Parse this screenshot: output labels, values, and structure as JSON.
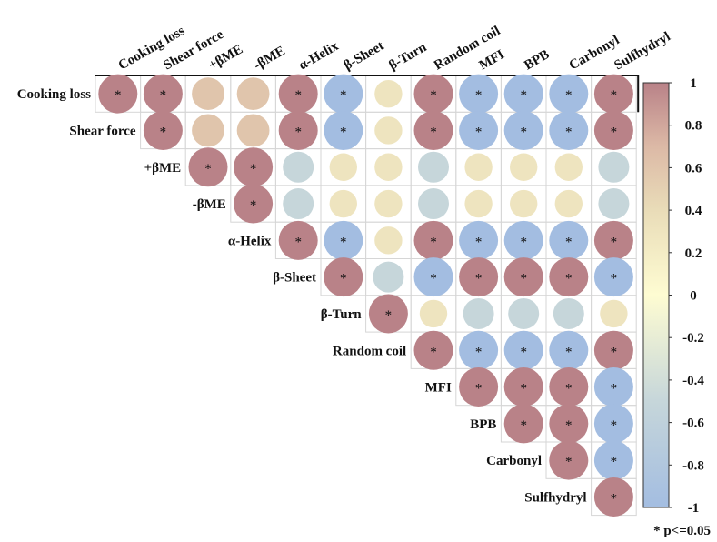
{
  "chart_data": {
    "type": "heatmap",
    "subtype": "upper-triangular correlation matrix",
    "variables": [
      "Cooking loss",
      "Shear force",
      "+βME",
      "-βME",
      "α-Helix",
      "β-Sheet",
      "β-Turn",
      "Random coil",
      "MFI",
      "BPB",
      "Carbonyl",
      "Sulfhydryl"
    ],
    "matrix": [
      [
        1,
        1,
        0.6,
        0.6,
        1,
        -1,
        0.3,
        1,
        -1,
        -1,
        -1,
        1
      ],
      [
        null,
        1,
        0.6,
        0.6,
        1,
        -1,
        0.3,
        1,
        -1,
        -1,
        -1,
        1
      ],
      [
        null,
        null,
        1,
        1,
        -0.5,
        0.3,
        0.3,
        -0.5,
        0.3,
        0.3,
        0.3,
        -0.5
      ],
      [
        null,
        null,
        null,
        1,
        -0.5,
        0.3,
        0.3,
        -0.5,
        0.3,
        0.3,
        0.3,
        -0.5
      ],
      [
        null,
        null,
        null,
        null,
        1,
        -1,
        0.3,
        1,
        -1,
        -1,
        -1,
        1
      ],
      [
        null,
        null,
        null,
        null,
        null,
        1,
        -0.5,
        -1,
        1,
        1,
        1,
        -1
      ],
      [
        null,
        null,
        null,
        null,
        null,
        null,
        1,
        0.3,
        -0.5,
        -0.5,
        -0.5,
        0.3
      ],
      [
        null,
        null,
        null,
        null,
        null,
        null,
        null,
        1,
        -1,
        -1,
        -1,
        1
      ],
      [
        null,
        null,
        null,
        null,
        null,
        null,
        null,
        null,
        1,
        1,
        1,
        -1
      ],
      [
        null,
        null,
        null,
        null,
        null,
        null,
        null,
        null,
        null,
        1,
        1,
        -1
      ],
      [
        null,
        null,
        null,
        null,
        null,
        null,
        null,
        null,
        null,
        null,
        1,
        -1
      ],
      [
        null,
        null,
        null,
        null,
        null,
        null,
        null,
        null,
        null,
        null,
        null,
        1
      ]
    ],
    "significant": [
      [
        true,
        true,
        false,
        false,
        true,
        true,
        false,
        true,
        true,
        true,
        true,
        true
      ],
      [
        null,
        true,
        false,
        false,
        true,
        true,
        false,
        true,
        true,
        true,
        true,
        true
      ],
      [
        null,
        null,
        true,
        true,
        false,
        false,
        false,
        false,
        false,
        false,
        false,
        false
      ],
      [
        null,
        null,
        null,
        true,
        false,
        false,
        false,
        false,
        false,
        false,
        false,
        false
      ],
      [
        null,
        null,
        null,
        null,
        true,
        true,
        false,
        true,
        true,
        true,
        true,
        true
      ],
      [
        null,
        null,
        null,
        null,
        null,
        true,
        false,
        true,
        true,
        true,
        true,
        true
      ],
      [
        null,
        null,
        null,
        null,
        null,
        null,
        true,
        false,
        false,
        false,
        false,
        false
      ],
      [
        null,
        null,
        null,
        null,
        null,
        null,
        null,
        true,
        true,
        true,
        true,
        true
      ],
      [
        null,
        null,
        null,
        null,
        null,
        null,
        null,
        null,
        true,
        true,
        true,
        true
      ],
      [
        null,
        null,
        null,
        null,
        null,
        null,
        null,
        null,
        null,
        true,
        true,
        true
      ],
      [
        null,
        null,
        null,
        null,
        null,
        null,
        null,
        null,
        null,
        null,
        true,
        true
      ],
      [
        null,
        null,
        null,
        null,
        null,
        null,
        null,
        null,
        null,
        null,
        null,
        true
      ]
    ],
    "significance_marker": "*",
    "colorbar": {
      "range": [
        -1,
        1
      ],
      "ticks": [
        1,
        0.8,
        0.6,
        0.4,
        0.2,
        0,
        -0.2,
        -0.4,
        -0.6,
        -0.8,
        -1
      ],
      "tick_labels": [
        "1",
        "0.8",
        "0.6",
        "0.4",
        "0.2",
        "0",
        "-0.2",
        "-0.4",
        "-0.6",
        "-0.8",
        "-1"
      ],
      "color_stops": [
        {
          "value": -1,
          "color": "#a3bde1"
        },
        {
          "value": -0.5,
          "color": "#c6d6da"
        },
        {
          "value": 0,
          "color": "#fefcd2"
        },
        {
          "value": 0.4,
          "color": "#e9dcb8"
        },
        {
          "value": 0.7,
          "color": "#dcb9a6"
        },
        {
          "value": 1,
          "color": "#b98288"
        }
      ]
    },
    "legend_note": "* p<=0.05"
  }
}
